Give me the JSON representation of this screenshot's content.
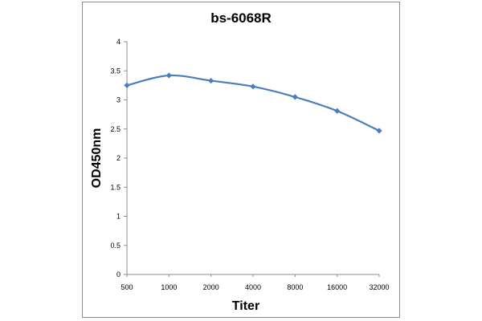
{
  "chart_data": {
    "type": "line",
    "title": "bs-6068R",
    "xlabel": "Titer",
    "ylabel": "OD450nm",
    "categories": [
      "500",
      "1000",
      "2000",
      "4000",
      "8000",
      "16000",
      "32000"
    ],
    "series": [
      {
        "values": [
          3.25,
          3.42,
          3.33,
          3.23,
          3.05,
          2.81,
          2.47
        ]
      }
    ],
    "ylim": [
      0,
      4
    ],
    "yticks": [
      "0",
      "0.5",
      "1",
      "1.5",
      "2",
      "2.5",
      "3",
      "3.5",
      "4"
    ],
    "ytick_values": [
      0,
      0.5,
      1,
      1.5,
      2,
      2.5,
      3,
      3.5,
      4
    ],
    "grid": false,
    "legend": "none",
    "line_color": "#4a7ebb"
  }
}
